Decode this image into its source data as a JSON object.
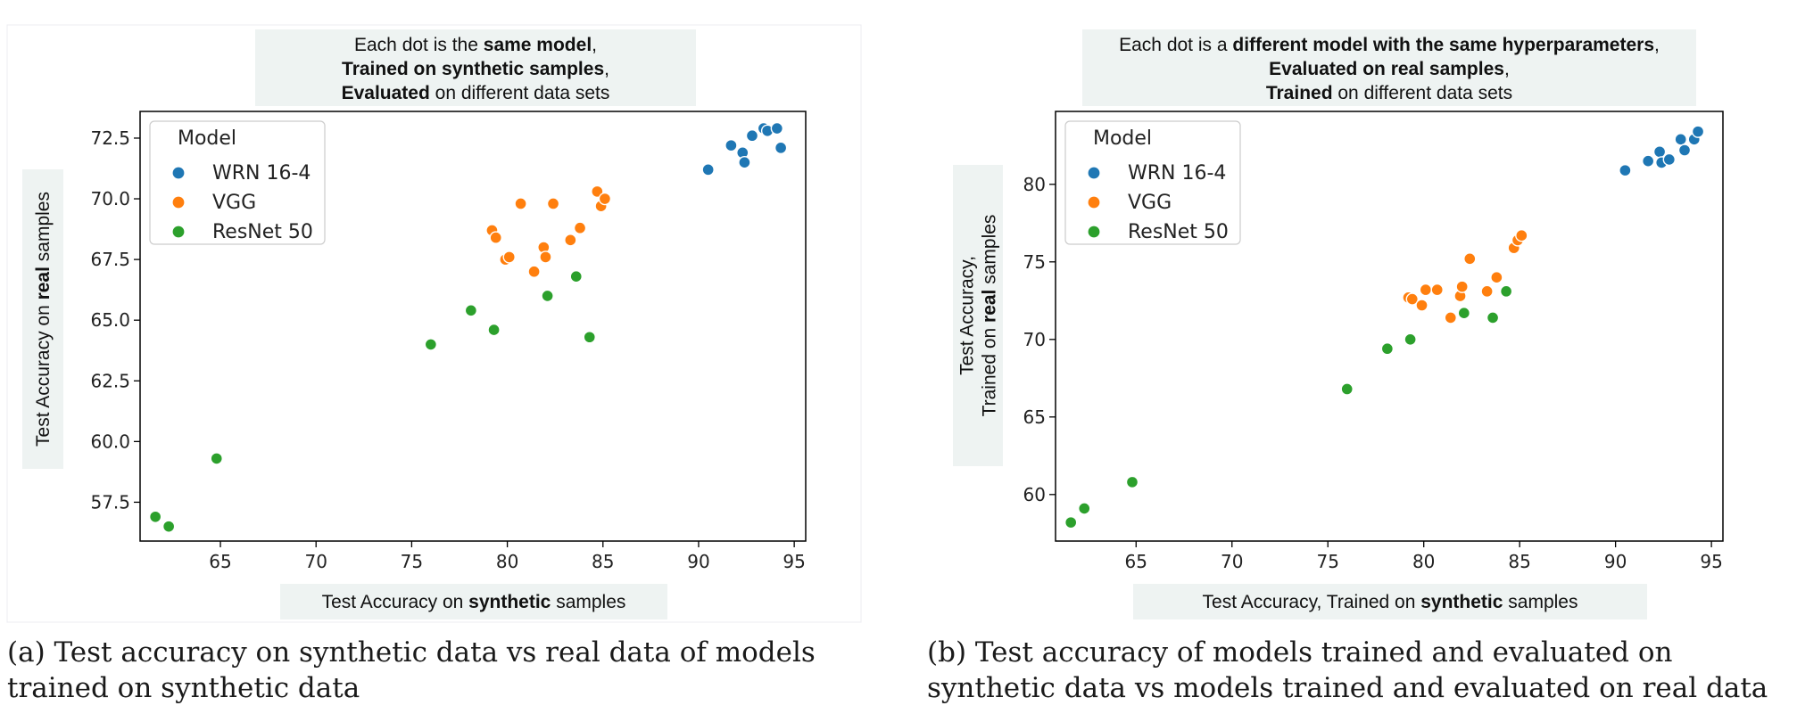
{
  "chart_data": [
    {
      "type": "scatter",
      "annotation_lines": [
        [
          {
            "t": "Each dot is the ",
            "b": false
          },
          {
            "t": "same model",
            "b": true
          },
          {
            "t": ",",
            "b": false
          }
        ],
        [
          {
            "t": "Trained on synthetic samples",
            "b": true
          },
          {
            "t": ",",
            "b": false
          }
        ],
        [
          {
            "t": "Evaluated",
            "b": true
          },
          {
            "t": " on different data sets",
            "b": false
          }
        ]
      ],
      "xlabel_parts": [
        {
          "t": "Test Accuracy on ",
          "b": false
        },
        {
          "t": "synthetic",
          "b": true
        },
        {
          "t": " samples",
          "b": false
        }
      ],
      "ylabel_lines": [
        [
          {
            "t": "Test Accuracy on ",
            "b": false
          },
          {
            "t": "real",
            "b": true
          },
          {
            "t": " samples",
            "b": false
          }
        ]
      ],
      "xlim": [
        60.8,
        95.6
      ],
      "ylim": [
        55.9,
        73.6
      ],
      "xticks": [
        65,
        70,
        75,
        80,
        85,
        90,
        95
      ],
      "yticks": [
        57.5,
        60.0,
        62.5,
        65.0,
        67.5,
        70.0,
        72.5
      ],
      "ytick_decimals": 1,
      "grid": false,
      "legend": {
        "title": "Model",
        "position": "top-left"
      },
      "series": [
        {
          "name": "WRN 16-4",
          "color": "#1f77b4",
          "points": [
            [
              90.5,
              71.2
            ],
            [
              91.7,
              72.2
            ],
            [
              92.3,
              71.9
            ],
            [
              92.4,
              71.5
            ],
            [
              92.8,
              72.6
            ],
            [
              93.4,
              72.9
            ],
            [
              93.6,
              72.8
            ],
            [
              94.1,
              72.9
            ],
            [
              94.3,
              72.1
            ]
          ]
        },
        {
          "name": "VGG",
          "color": "#ff7f0e",
          "points": [
            [
              79.2,
              68.7
            ],
            [
              79.4,
              68.4
            ],
            [
              79.9,
              67.5
            ],
            [
              80.1,
              67.6
            ],
            [
              80.7,
              69.8
            ],
            [
              81.4,
              67.0
            ],
            [
              81.9,
              68.0
            ],
            [
              82.0,
              67.6
            ],
            [
              82.4,
              69.8
            ],
            [
              83.3,
              68.3
            ],
            [
              83.8,
              68.8
            ],
            [
              84.7,
              70.3
            ],
            [
              84.9,
              69.7
            ],
            [
              85.1,
              70.0
            ]
          ]
        },
        {
          "name": "ResNet 50",
          "color": "#2ca02c",
          "points": [
            [
              61.6,
              56.9
            ],
            [
              62.3,
              56.5
            ],
            [
              64.8,
              59.3
            ],
            [
              76.0,
              64.0
            ],
            [
              78.1,
              65.4
            ],
            [
              79.3,
              64.6
            ],
            [
              82.1,
              66.0
            ],
            [
              83.6,
              66.8
            ],
            [
              84.3,
              64.3
            ]
          ]
        }
      ]
    },
    {
      "type": "scatter",
      "annotation_lines": [
        [
          {
            "t": "Each dot is a ",
            "b": false
          },
          {
            "t": "different model with the same hyperparameters",
            "b": true
          },
          {
            "t": ",",
            "b": false
          }
        ],
        [
          {
            "t": "Evaluated on real samples",
            "b": true
          },
          {
            "t": ",",
            "b": false
          }
        ],
        [
          {
            "t": "Trained",
            "b": true
          },
          {
            "t": " on different data sets",
            "b": false
          }
        ]
      ],
      "xlabel_parts": [
        {
          "t": "Test Accuracy, Trained on ",
          "b": false
        },
        {
          "t": "synthetic",
          "b": true
        },
        {
          "t": " samples",
          "b": false
        }
      ],
      "ylabel_lines": [
        [
          {
            "t": "Test Accuracy,",
            "b": false
          }
        ],
        [
          {
            "t": "Trained on ",
            "b": false
          },
          {
            "t": "real",
            "b": true
          },
          {
            "t": " samples",
            "b": false
          }
        ]
      ],
      "xlim": [
        60.8,
        95.6
      ],
      "ylim": [
        57.0,
        84.7
      ],
      "xticks": [
        65,
        70,
        75,
        80,
        85,
        90,
        95
      ],
      "yticks": [
        60,
        65,
        70,
        75,
        80
      ],
      "ytick_decimals": 0,
      "grid": false,
      "legend": {
        "title": "Model",
        "position": "top-left"
      },
      "series": [
        {
          "name": "WRN 16-4",
          "color": "#1f77b4",
          "points": [
            [
              90.5,
              80.9
            ],
            [
              91.7,
              81.5
            ],
            [
              92.3,
              82.1
            ],
            [
              92.4,
              81.4
            ],
            [
              92.8,
              81.6
            ],
            [
              93.4,
              82.9
            ],
            [
              93.6,
              82.2
            ],
            [
              94.1,
              82.9
            ],
            [
              94.3,
              83.4
            ]
          ]
        },
        {
          "name": "VGG",
          "color": "#ff7f0e",
          "points": [
            [
              79.2,
              72.7
            ],
            [
              79.4,
              72.6
            ],
            [
              79.9,
              72.2
            ],
            [
              80.1,
              73.2
            ],
            [
              80.7,
              73.2
            ],
            [
              81.4,
              71.4
            ],
            [
              81.9,
              72.8
            ],
            [
              82.0,
              73.4
            ],
            [
              82.4,
              75.2
            ],
            [
              83.3,
              73.1
            ],
            [
              83.8,
              74.0
            ],
            [
              84.7,
              75.9
            ],
            [
              84.9,
              76.4
            ],
            [
              85.1,
              76.7
            ]
          ]
        },
        {
          "name": "ResNet 50",
          "color": "#2ca02c",
          "points": [
            [
              61.6,
              58.2
            ],
            [
              62.3,
              59.1
            ],
            [
              64.8,
              60.8
            ],
            [
              76.0,
              66.8
            ],
            [
              78.1,
              69.4
            ],
            [
              79.3,
              70.0
            ],
            [
              82.1,
              71.7
            ],
            [
              83.6,
              71.4
            ],
            [
              84.3,
              73.1
            ]
          ]
        }
      ]
    }
  ],
  "captions": [
    "(a) Test accuracy on synthetic data vs real data of models trained on synthetic data",
    "(b) Test accuracy of models trained and evaluated on synthetic data vs models trained and evaluated on real data"
  ]
}
